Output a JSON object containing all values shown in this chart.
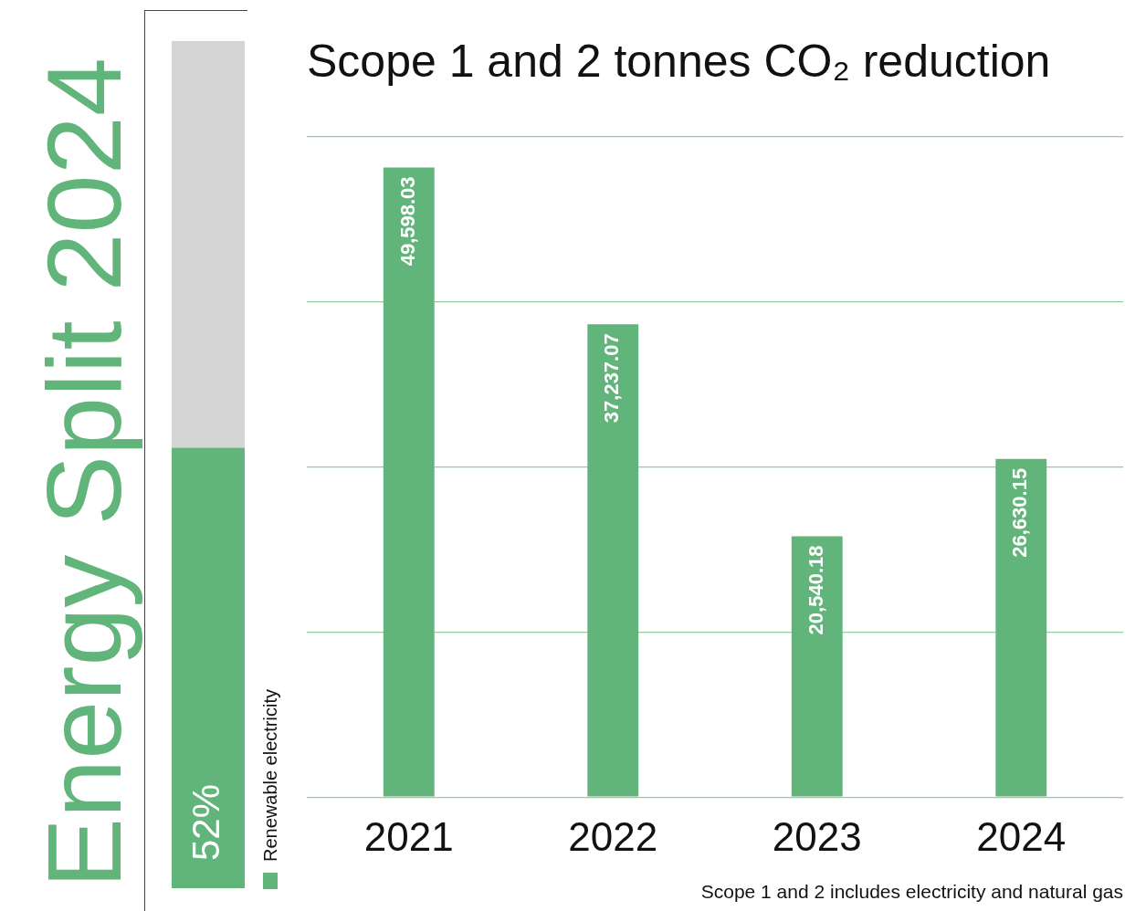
{
  "chart_data": [
    {
      "type": "bar",
      "title": "Energy Split 2024",
      "stacked": true,
      "categories": [
        null
      ],
      "ylim": [
        0,
        100
      ],
      "tick_labels": false,
      "legend": "right",
      "series": [
        {
          "name": "Renewable electricity",
          "color": "#62b57a",
          "values": [
            52
          ],
          "value_labels": [
            "52%"
          ]
        },
        {
          "color": "#d4d4d4",
          "values": [
            48
          ]
        }
      ]
    },
    {
      "type": "bar",
      "title": "Scope 1 and 2 tonnes CO₂ reduction",
      "categories": [
        "2021",
        "2022",
        "2023",
        "2024"
      ],
      "series": [
        {
          "color": "#62b57a",
          "values": [
            49598.03,
            37237.07,
            20540.18,
            26630.15
          ],
          "value_labels": [
            "49,598.03",
            "37,237.07",
            "20,540.18",
            "26,630.15"
          ]
        }
      ],
      "ylim": [
        0,
        52000
      ],
      "yticks": [
        {
          "value": 0,
          "label": null
        },
        {
          "value": 13000,
          "label": null
        },
        {
          "value": 26000,
          "label": null
        },
        {
          "value": 39000,
          "label": null
        },
        {
          "value": 52000,
          "label": null
        }
      ],
      "grid": "y",
      "tick_labels": "x",
      "legend": false,
      "annotations": [
        "Scope 1 and 2 includes electricity and natural gas"
      ]
    }
  ]
}
